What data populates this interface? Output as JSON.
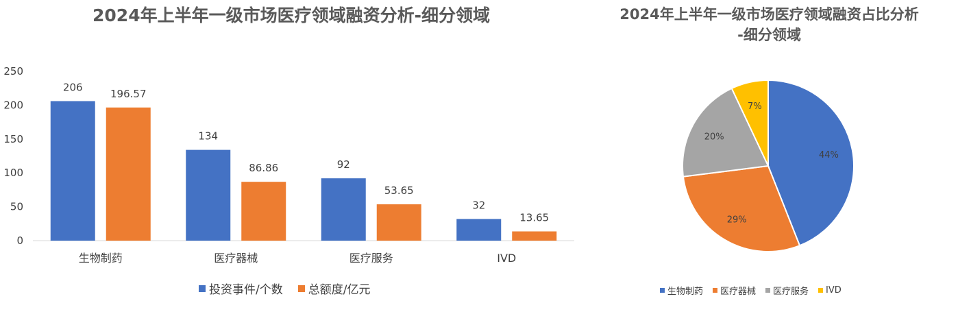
{
  "colors": {
    "blue": "#4472c4",
    "orange": "#ed7d31",
    "gray": "#a5a5a5",
    "yellow": "#ffc000",
    "axis": "#d9d9d9",
    "text": "#404040"
  },
  "chart_data": [
    {
      "type": "bar",
      "title": "2024年上半年一级市场医疗领域融资分析-细分领域",
      "categories": [
        "生物制药",
        "医疗器械",
        "医疗服务",
        "IVD"
      ],
      "series": [
        {
          "name": "投资事件/个数",
          "values": [
            206,
            134,
            92,
            32
          ],
          "labels": [
            "206",
            "134",
            "92",
            "32"
          ]
        },
        {
          "name": "总额度/亿元",
          "values": [
            196.57,
            86.86,
            53.65,
            13.65
          ],
          "labels": [
            "196.57",
            "86.86",
            "53.65",
            "13.65"
          ]
        }
      ],
      "ylim": [
        0,
        250
      ],
      "yticks": [
        "0",
        "50",
        "100",
        "150",
        "200",
        "250"
      ],
      "grid": false,
      "legend": "bottom"
    },
    {
      "type": "pie",
      "title": "2024年上半年一级市场医疗领域融资占比分析-细分领域",
      "title_lines": [
        "2024年上半年一级市场医疗领域融资占比分析",
        "-细分领域"
      ],
      "categories": [
        "生物制药",
        "医疗器械",
        "医疗服务",
        "IVD"
      ],
      "values": [
        44,
        29,
        20,
        7
      ],
      "labels": [
        "44%",
        "29%",
        "20%",
        "7%"
      ],
      "legend": "bottom"
    }
  ]
}
